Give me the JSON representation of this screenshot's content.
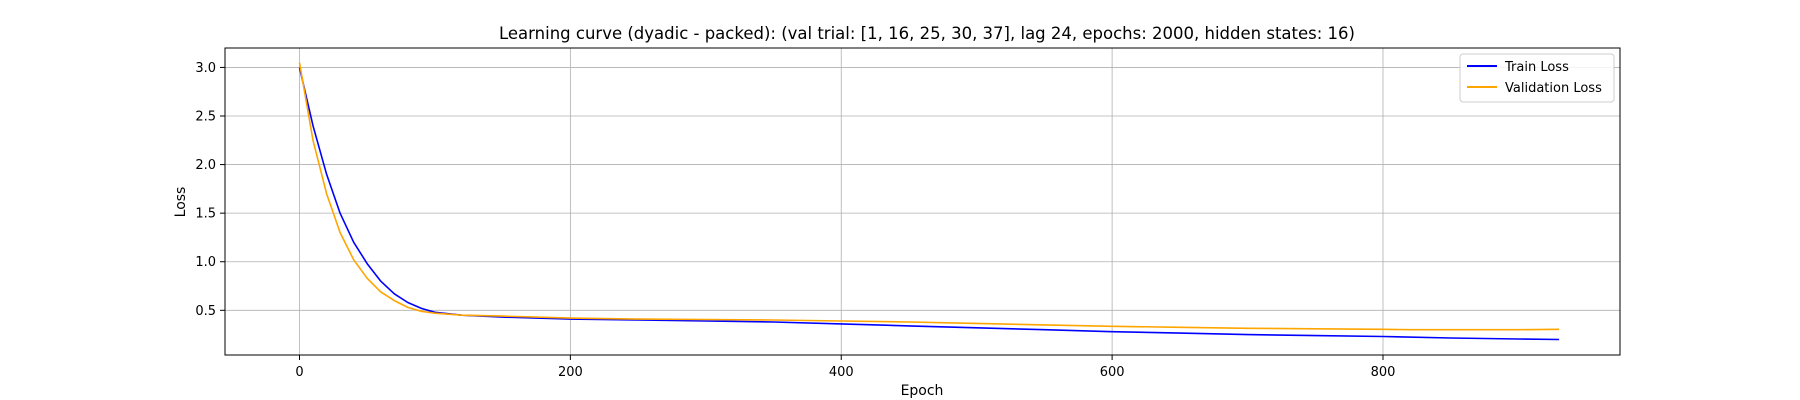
{
  "chart_data": {
    "type": "line",
    "title": "Learning curve (dyadic - packed): (val trial: [1, 16, 25, 30, 37], lag 24, epochs: 2000, hidden states: 16)",
    "xlabel": "Epoch",
    "ylabel": "Loss",
    "xlim": [
      -55,
      975
    ],
    "ylim": [
      0.04,
      3.2
    ],
    "xticks": [
      0,
      200,
      400,
      600,
      800
    ],
    "yticks": [
      0.5,
      1.0,
      1.5,
      2.0,
      2.5,
      3.0
    ],
    "xtick_labels": [
      "0",
      "200",
      "400",
      "600",
      "800"
    ],
    "ytick_labels": [
      "0.5",
      "1.0",
      "1.5",
      "2.0",
      "2.5",
      "3.0"
    ],
    "grid": true,
    "legend_position": "top-right",
    "series": [
      {
        "name": "Train Loss",
        "color": "#0000ff",
        "x": [
          0,
          10,
          20,
          30,
          40,
          50,
          60,
          70,
          80,
          90,
          100,
          120,
          150,
          200,
          250,
          300,
          350,
          400,
          450,
          500,
          550,
          600,
          650,
          700,
          750,
          800,
          850,
          900,
          930
        ],
        "y": [
          3.0,
          2.4,
          1.9,
          1.5,
          1.2,
          0.98,
          0.8,
          0.67,
          0.58,
          0.52,
          0.48,
          0.45,
          0.43,
          0.41,
          0.4,
          0.39,
          0.38,
          0.36,
          0.34,
          0.32,
          0.3,
          0.28,
          0.265,
          0.25,
          0.24,
          0.23,
          0.215,
          0.205,
          0.2
        ]
      },
      {
        "name": "Validation Loss",
        "color": "#ffa500",
        "x": [
          0,
          10,
          20,
          30,
          40,
          50,
          60,
          70,
          80,
          90,
          100,
          120,
          150,
          200,
          250,
          300,
          350,
          400,
          450,
          500,
          550,
          600,
          650,
          700,
          750,
          800,
          820,
          850,
          900,
          930
        ],
        "y": [
          3.05,
          2.25,
          1.7,
          1.3,
          1.02,
          0.83,
          0.69,
          0.6,
          0.53,
          0.49,
          0.47,
          0.45,
          0.44,
          0.42,
          0.41,
          0.405,
          0.4,
          0.39,
          0.38,
          0.365,
          0.35,
          0.335,
          0.325,
          0.315,
          0.31,
          0.305,
          0.3,
          0.3,
          0.3,
          0.305
        ]
      }
    ]
  }
}
